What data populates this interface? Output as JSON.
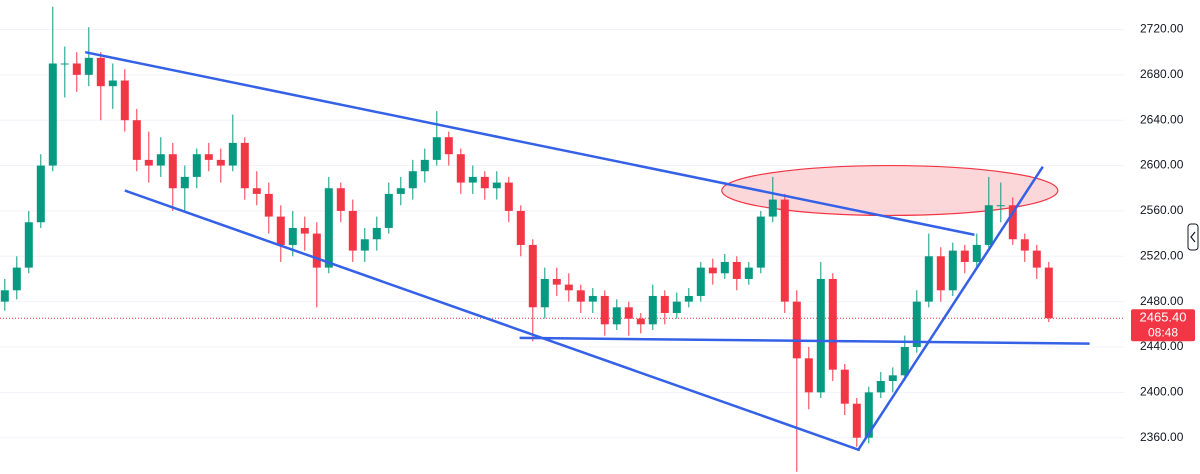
{
  "chart_data": {
    "type": "candlestick",
    "ohlc": [
      [
        2480,
        2500,
        2472,
        2490
      ],
      [
        2490,
        2520,
        2482,
        2510
      ],
      [
        2510,
        2560,
        2505,
        2550
      ],
      [
        2550,
        2610,
        2545,
        2600
      ],
      [
        2600,
        2740,
        2595,
        2690
      ],
      [
        2690,
        2705,
        2660,
        2690
      ],
      [
        2690,
        2700,
        2665,
        2680
      ],
      [
        2680,
        2722,
        2670,
        2695
      ],
      [
        2695,
        2700,
        2640,
        2670
      ],
      [
        2670,
        2690,
        2650,
        2675
      ],
      [
        2675,
        2685,
        2630,
        2640
      ],
      [
        2640,
        2650,
        2595,
        2605
      ],
      [
        2605,
        2630,
        2585,
        2600
      ],
      [
        2600,
        2625,
        2590,
        2610
      ],
      [
        2610,
        2620,
        2560,
        2580
      ],
      [
        2580,
        2600,
        2560,
        2590
      ],
      [
        2590,
        2615,
        2580,
        2610
      ],
      [
        2610,
        2620,
        2595,
        2605
      ],
      [
        2605,
        2615,
        2585,
        2600
      ],
      [
        2600,
        2645,
        2595,
        2620
      ],
      [
        2620,
        2625,
        2570,
        2580
      ],
      [
        2580,
        2595,
        2565,
        2575
      ],
      [
        2575,
        2585,
        2540,
        2555
      ],
      [
        2555,
        2565,
        2515,
        2530
      ],
      [
        2530,
        2560,
        2520,
        2545
      ],
      [
        2545,
        2555,
        2525,
        2540
      ],
      [
        2540,
        2550,
        2475,
        2510
      ],
      [
        2510,
        2590,
        2505,
        2580
      ],
      [
        2580,
        2585,
        2550,
        2560
      ],
      [
        2560,
        2570,
        2515,
        2525
      ],
      [
        2525,
        2545,
        2515,
        2535
      ],
      [
        2535,
        2555,
        2525,
        2545
      ],
      [
        2545,
        2585,
        2540,
        2575
      ],
      [
        2575,
        2590,
        2565,
        2580
      ],
      [
        2580,
        2605,
        2570,
        2595
      ],
      [
        2595,
        2615,
        2585,
        2605
      ],
      [
        2605,
        2648,
        2600,
        2625
      ],
      [
        2625,
        2630,
        2600,
        2610
      ],
      [
        2610,
        2615,
        2575,
        2585
      ],
      [
        2585,
        2600,
        2575,
        2590
      ],
      [
        2590,
        2595,
        2570,
        2580
      ],
      [
        2580,
        2595,
        2570,
        2585
      ],
      [
        2585,
        2590,
        2550,
        2560
      ],
      [
        2560,
        2565,
        2520,
        2530
      ],
      [
        2530,
        2535,
        2445,
        2475
      ],
      [
        2475,
        2510,
        2465,
        2500
      ],
      [
        2500,
        2510,
        2485,
        2495
      ],
      [
        2495,
        2505,
        2480,
        2490
      ],
      [
        2490,
        2495,
        2470,
        2480
      ],
      [
        2480,
        2492,
        2470,
        2485
      ],
      [
        2485,
        2490,
        2450,
        2460
      ],
      [
        2460,
        2482,
        2455,
        2475
      ],
      [
        2475,
        2480,
        2450,
        2465
      ],
      [
        2465,
        2470,
        2452,
        2460
      ],
      [
        2460,
        2495,
        2455,
        2485
      ],
      [
        2485,
        2490,
        2460,
        2470
      ],
      [
        2470,
        2488,
        2465,
        2480
      ],
      [
        2480,
        2492,
        2475,
        2485
      ],
      [
        2485,
        2515,
        2480,
        2510
      ],
      [
        2510,
        2518,
        2495,
        2505
      ],
      [
        2505,
        2522,
        2500,
        2515
      ],
      [
        2515,
        2520,
        2490,
        2500
      ],
      [
        2500,
        2515,
        2495,
        2510
      ],
      [
        2510,
        2560,
        2505,
        2555
      ],
      [
        2555,
        2590,
        2550,
        2570
      ],
      [
        2570,
        2575,
        2470,
        2480
      ],
      [
        2480,
        2490,
        2330,
        2430
      ],
      [
        2430,
        2440,
        2385,
        2400
      ],
      [
        2400,
        2515,
        2395,
        2500
      ],
      [
        2500,
        2505,
        2410,
        2420
      ],
      [
        2420,
        2425,
        2380,
        2390
      ],
      [
        2390,
        2395,
        2352,
        2360
      ],
      [
        2360,
        2405,
        2355,
        2400
      ],
      [
        2400,
        2418,
        2395,
        2410
      ],
      [
        2410,
        2422,
        2400,
        2415
      ],
      [
        2415,
        2450,
        2410,
        2440
      ],
      [
        2440,
        2490,
        2435,
        2480
      ],
      [
        2480,
        2540,
        2475,
        2520
      ],
      [
        2520,
        2528,
        2480,
        2490
      ],
      [
        2490,
        2532,
        2485,
        2525
      ],
      [
        2525,
        2530,
        2505,
        2515
      ],
      [
        2515,
        2540,
        2510,
        2530
      ],
      [
        2530,
        2590,
        2525,
        2565
      ],
      [
        2565,
        2585,
        2550,
        2565
      ],
      [
        2565,
        2572,
        2530,
        2535
      ],
      [
        2535,
        2540,
        2515,
        2525
      ],
      [
        2525,
        2530,
        2500,
        2510
      ],
      [
        2510,
        2515,
        2462,
        2465.4
      ]
    ],
    "up_color": "#089981",
    "down_color": "#f23645",
    "xlim": [
      -0.4,
      93.35
    ],
    "ylim": [
      2328,
      2746
    ],
    "yticks": [
      {
        "value": 2360,
        "label": "2360.00"
      },
      {
        "value": 2400,
        "label": "2400.00"
      },
      {
        "value": 2440,
        "label": "2440.00"
      },
      {
        "value": 2480,
        "label": "2480.00"
      },
      {
        "value": 2520,
        "label": "2520.00"
      },
      {
        "value": 2560,
        "label": "2560.00"
      },
      {
        "value": 2600,
        "label": "2600.00"
      },
      {
        "value": 2640,
        "label": "2640.00"
      },
      {
        "value": 2680,
        "label": "2680.00"
      },
      {
        "value": 2720,
        "label": "2720.00"
      }
    ],
    "grid": true,
    "last_price": {
      "value": 2465.4,
      "label": "2465.40"
    },
    "countdown": "08:48",
    "trend_lines": [
      {
        "x": [
          6.7,
          80.8
        ],
        "y": [
          2700,
          2539
        ],
        "color": "#3461e6"
      },
      {
        "x": [
          10,
          71.25
        ],
        "y": [
          2578,
          2349
        ],
        "color": "#3461e6"
      },
      {
        "x": [
          42.9,
          90.4
        ],
        "y": [
          2448,
          2443
        ],
        "color": "#3461e6"
      },
      {
        "x": [
          71.1,
          86.5
        ],
        "y": [
          2349,
          2599
        ],
        "color": "#3461e6"
      }
    ],
    "zones": [
      {
        "cx": 73.75,
        "cy": 2578,
        "rx": 14,
        "ry": 22,
        "color": "#f23645"
      }
    ]
  }
}
